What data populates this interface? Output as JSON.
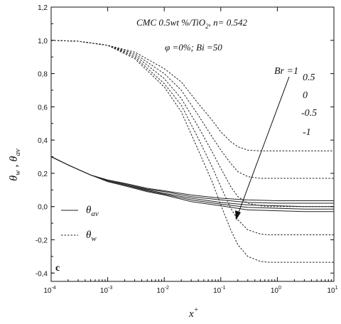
{
  "chart_data": {
    "type": "line",
    "panel_label": "c",
    "annotations": {
      "line1_main": "CMC 0.5wt %/TiO",
      "line1_sub": "2",
      "line1_tail": ", n= 0.542",
      "line2": "φ =0%; Bi =50"
    },
    "xlabel": {
      "main": "x",
      "sup": "+"
    },
    "ylabel": {
      "a": "θ",
      "a_sub": "w",
      "sep": " , ",
      "b": "θ",
      "b_sub": "av"
    },
    "x_scale": "log",
    "xlim": [
      0.0001,
      10
    ],
    "ylim": [
      -0.45,
      1.2
    ],
    "x_ticks": [
      {
        "value": 0.0001,
        "base": "10",
        "exp": "-4"
      },
      {
        "value": 0.001,
        "base": "10",
        "exp": "-3"
      },
      {
        "value": 0.01,
        "base": "10",
        "exp": "-2"
      },
      {
        "value": 0.1,
        "base": "10",
        "exp": "-1"
      },
      {
        "value": 1,
        "base": "10",
        "exp": "0"
      },
      {
        "value": 10,
        "base": "10",
        "exp": "1"
      }
    ],
    "y_ticks": [
      {
        "value": -0.4,
        "label": "-0,4"
      },
      {
        "value": -0.2,
        "label": "-0,2"
      },
      {
        "value": 0.0,
        "label": "0,0"
      },
      {
        "value": 0.2,
        "label": "0,2"
      },
      {
        "value": 0.4,
        "label": "0,4"
      },
      {
        "value": 0.6,
        "label": "0,6"
      },
      {
        "value": 0.8,
        "label": "0,8"
      },
      {
        "value": 1.0,
        "label": "1,0"
      },
      {
        "value": 1.2,
        "label": "1,2"
      }
    ],
    "br_labels": [
      "Br =1",
      "0.5",
      "0",
      "-0.5",
      "-1"
    ],
    "legend": [
      {
        "style": "solid",
        "symbol": "θ",
        "sub": "av"
      },
      {
        "style": "dashed",
        "symbol": "θ",
        "sub": "w"
      }
    ],
    "series": [
      {
        "group": "theta_w",
        "Br": 1,
        "style": "dashed",
        "x": [
          0.0001,
          0.0003,
          0.001,
          0.003,
          0.01,
          0.02,
          0.04,
          0.07,
          0.1,
          0.15,
          0.2,
          0.3,
          0.5,
          0.7,
          1,
          2,
          5,
          10
        ],
        "y": [
          1.0,
          0.995,
          0.97,
          0.93,
          0.83,
          0.75,
          0.62,
          0.52,
          0.45,
          0.39,
          0.36,
          0.34,
          0.335,
          0.335,
          0.335,
          0.335,
          0.335,
          0.335
        ]
      },
      {
        "group": "theta_w",
        "Br": 0.5,
        "style": "dashed",
        "x": [
          0.0001,
          0.0003,
          0.001,
          0.003,
          0.01,
          0.02,
          0.04,
          0.07,
          0.1,
          0.15,
          0.2,
          0.3,
          0.5,
          0.7,
          1,
          2,
          5,
          10
        ],
        "y": [
          1.0,
          0.995,
          0.97,
          0.92,
          0.8,
          0.7,
          0.55,
          0.42,
          0.34,
          0.26,
          0.21,
          0.18,
          0.17,
          0.17,
          0.17,
          0.17,
          0.17,
          0.17
        ]
      },
      {
        "group": "theta_w",
        "Br": 0,
        "style": "dashed",
        "x": [
          0.0001,
          0.0003,
          0.001,
          0.003,
          0.01,
          0.02,
          0.04,
          0.07,
          0.1,
          0.15,
          0.2,
          0.3,
          0.5,
          0.7,
          1,
          2,
          5,
          10
        ],
        "y": [
          1.0,
          0.995,
          0.97,
          0.91,
          0.77,
          0.65,
          0.48,
          0.33,
          0.23,
          0.12,
          0.06,
          0.02,
          0.005,
          0.0,
          0.0,
          0.0,
          0.0,
          0.0
        ]
      },
      {
        "group": "theta_w",
        "Br": -0.5,
        "style": "dashed",
        "x": [
          0.0001,
          0.0003,
          0.001,
          0.003,
          0.01,
          0.02,
          0.04,
          0.07,
          0.1,
          0.15,
          0.2,
          0.3,
          0.5,
          0.7,
          1,
          2,
          5,
          10
        ],
        "y": [
          1.0,
          0.995,
          0.97,
          0.9,
          0.74,
          0.61,
          0.41,
          0.24,
          0.12,
          -0.01,
          -0.08,
          -0.14,
          -0.165,
          -0.17,
          -0.17,
          -0.17,
          -0.17,
          -0.17
        ]
      },
      {
        "group": "theta_w",
        "Br": -1,
        "style": "dashed",
        "x": [
          0.0001,
          0.0003,
          0.001,
          0.003,
          0.01,
          0.02,
          0.04,
          0.07,
          0.1,
          0.15,
          0.2,
          0.3,
          0.5,
          0.7,
          1,
          2,
          5,
          10
        ],
        "y": [
          1.0,
          0.995,
          0.97,
          0.89,
          0.72,
          0.57,
          0.34,
          0.15,
          0.01,
          -0.14,
          -0.23,
          -0.3,
          -0.33,
          -0.335,
          -0.335,
          -0.335,
          -0.335,
          -0.335
        ]
      },
      {
        "group": "theta_av",
        "Br": 1,
        "style": "solid",
        "x": [
          0.0001,
          0.0002,
          0.0005,
          0.001,
          0.002,
          0.005,
          0.01,
          0.03,
          0.1,
          0.3,
          1,
          3,
          10
        ],
        "y": [
          0.3,
          0.25,
          0.19,
          0.16,
          0.14,
          0.11,
          0.095,
          0.07,
          0.05,
          0.04,
          0.035,
          0.035,
          0.035
        ]
      },
      {
        "group": "theta_av",
        "Br": 0.5,
        "style": "solid",
        "x": [
          0.0001,
          0.0002,
          0.0005,
          0.001,
          0.002,
          0.005,
          0.01,
          0.03,
          0.1,
          0.3,
          1,
          3,
          10
        ],
        "y": [
          0.3,
          0.25,
          0.19,
          0.16,
          0.135,
          0.105,
          0.09,
          0.06,
          0.04,
          0.025,
          0.02,
          0.02,
          0.02
        ]
      },
      {
        "group": "theta_av",
        "Br": 0,
        "style": "solid",
        "x": [
          0.0001,
          0.0002,
          0.0005,
          0.001,
          0.002,
          0.005,
          0.01,
          0.03,
          0.1,
          0.3,
          1,
          3,
          10
        ],
        "y": [
          0.3,
          0.25,
          0.19,
          0.155,
          0.13,
          0.1,
          0.08,
          0.05,
          0.025,
          0.01,
          0.005,
          0.0,
          0.0
        ]
      },
      {
        "group": "theta_av",
        "Br": -0.5,
        "style": "solid",
        "x": [
          0.0001,
          0.0002,
          0.0005,
          0.001,
          0.002,
          0.005,
          0.01,
          0.03,
          0.1,
          0.3,
          1,
          3,
          10
        ],
        "y": [
          0.3,
          0.25,
          0.19,
          0.155,
          0.13,
          0.095,
          0.075,
          0.04,
          0.015,
          -0.005,
          -0.01,
          -0.015,
          -0.015
        ]
      },
      {
        "group": "theta_av",
        "Br": -1,
        "style": "solid",
        "x": [
          0.0001,
          0.0002,
          0.0005,
          0.001,
          0.002,
          0.005,
          0.01,
          0.03,
          0.1,
          0.3,
          1,
          3,
          10
        ],
        "y": [
          0.3,
          0.25,
          0.19,
          0.15,
          0.125,
          0.09,
          0.07,
          0.03,
          0.005,
          -0.02,
          -0.025,
          -0.03,
          -0.03
        ]
      }
    ]
  }
}
